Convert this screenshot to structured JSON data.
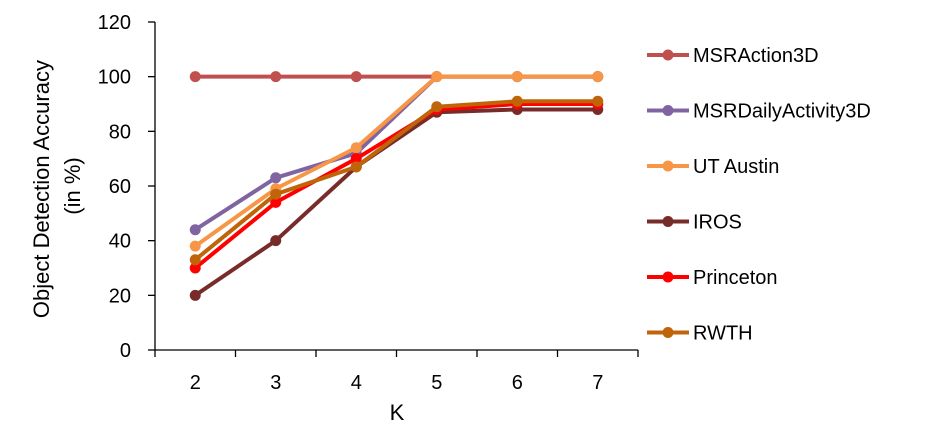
{
  "chart_data": {
    "type": "line",
    "xlabel": "K",
    "ylabel_lines": [
      "Object Detection Accuracy",
      "(in %)"
    ],
    "ylim": [
      0,
      120
    ],
    "yticks": [
      0,
      20,
      40,
      60,
      80,
      100,
      120
    ],
    "categories": [
      "2",
      "3",
      "4",
      "5",
      "6",
      "7"
    ],
    "grid": false,
    "legend_position": "right",
    "series": [
      {
        "name": "MSRAction3D",
        "color": "#C0504D",
        "values": [
          100,
          100,
          100,
          100,
          100,
          100
        ]
      },
      {
        "name": "MSRDailyActivity3D",
        "color": "#8064A2",
        "values": [
          44,
          63,
          72,
          100,
          100,
          100
        ]
      },
      {
        "name": "UT Austin",
        "color": "#F79646",
        "values": [
          38,
          59,
          74,
          100,
          100,
          100
        ]
      },
      {
        "name": "IROS",
        "color": "#772C2A",
        "values": [
          20,
          40,
          67,
          87,
          88,
          88
        ]
      },
      {
        "name": "Princeton",
        "color": "#FF0000",
        "values": [
          30,
          54,
          70,
          88,
          90,
          90
        ]
      },
      {
        "name": "RWTH",
        "color": "#C0640A",
        "values": [
          33,
          57,
          67,
          89,
          91,
          91
        ]
      }
    ]
  }
}
